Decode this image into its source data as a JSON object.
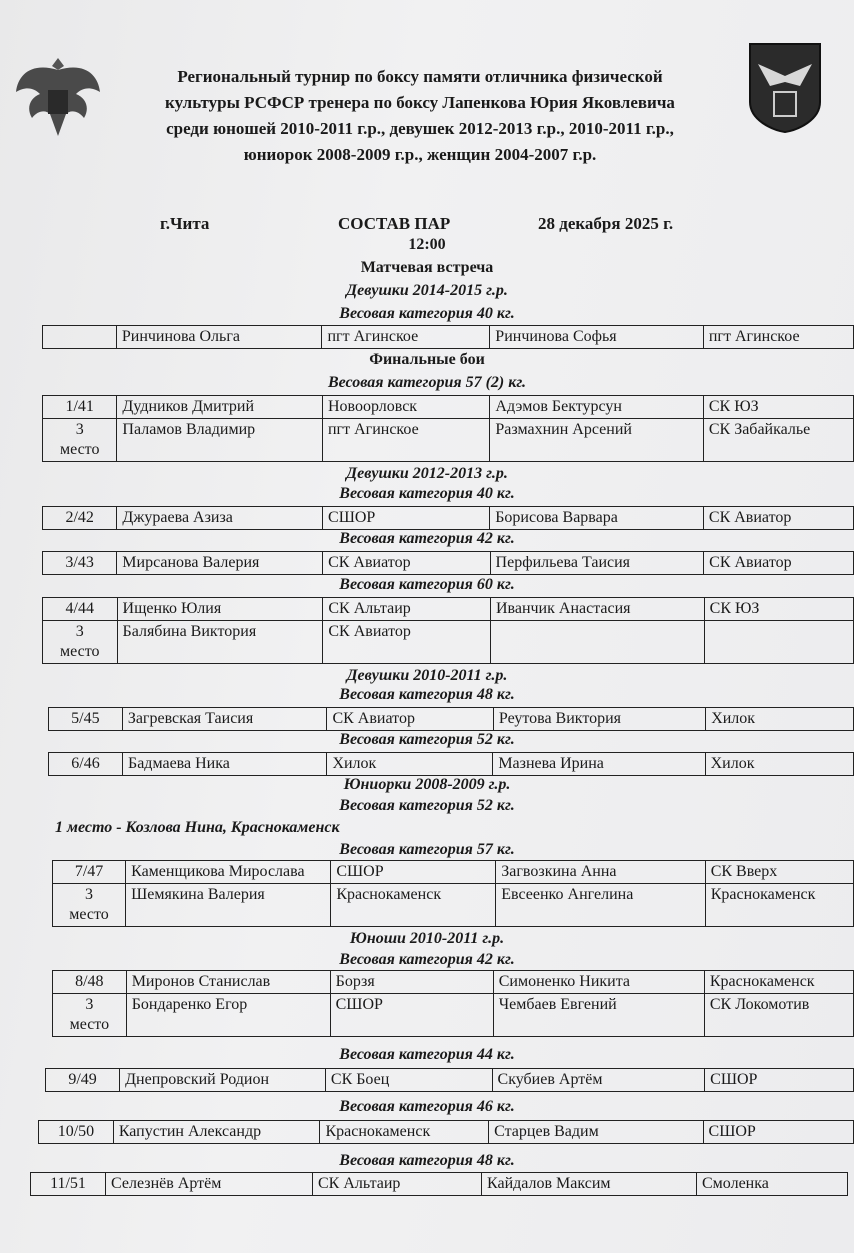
{
  "header": {
    "title_lines": [
      "Региональный турнир по боксу памяти отличника физической",
      "культуры РСФСР тренера по боксу Лапенкова Юрия Яковлевича",
      "среди юношей 2010-2011 г.р., девушек 2012-2013 г.р., 2010-2011 г.р.,",
      "юниорок 2008-2009 г.р., женщин 2004-2007 г.р."
    ],
    "city": "г.Чита",
    "doc_title": "СОСТАВ ПАР",
    "date": "28 декабря 2025 г.",
    "left_emblem": "russian-eagle-emblem",
    "right_emblem": "zabaikalsky-coat-of-arms"
  },
  "blocks": [
    {
      "type": "heading",
      "style": "bold",
      "text": "12:00"
    },
    {
      "type": "heading",
      "style": "bold",
      "text": "Матчевая встреча"
    },
    {
      "type": "heading",
      "style": "italic",
      "text": "Девушки 2014-2015 г.р."
    },
    {
      "type": "heading",
      "style": "italic",
      "text": "Весовая категория 40    кг."
    },
    {
      "type": "table",
      "rows": [
        [
          "",
          "Ринчинова Ольга",
          "пгт Агинское",
          "Ринчинова Софья",
          "пгт Агинское"
        ]
      ]
    },
    {
      "type": "heading",
      "style": "bold",
      "text": "Финальные  бои"
    },
    {
      "type": "heading",
      "style": "italic",
      "text": "Весовая категория 57 (2)  кг."
    },
    {
      "type": "table",
      "rows": [
        [
          "1/41",
          "Дудников Дмитрий",
          "Новоорловск",
          "Адэмов Бектурсун",
          "СК ЮЗ"
        ],
        [
          "3\nместо",
          "Паламов Владимир",
          "пгт Агинское",
          "Размахнин Арсений",
          "СК Забайкалье"
        ]
      ]
    },
    {
      "type": "heading",
      "style": "italic",
      "text": "Девушки 2012-2013 г.р."
    },
    {
      "type": "heading",
      "style": "italic",
      "text": "Весовая категория 40    кг."
    },
    {
      "type": "table",
      "rows": [
        [
          "2/42",
          "Джураева Азиза",
          "СШОР",
          "Борисова Варвара",
          "СК Авиатор"
        ]
      ]
    },
    {
      "type": "heading",
      "style": "italic",
      "text": "Весовая категория 42    кг."
    },
    {
      "type": "table",
      "rows": [
        [
          "3/43",
          "Мирсанова Валерия",
          "СК Авиатор",
          "Перфильева Таисия",
          "СК Авиатор"
        ]
      ]
    },
    {
      "type": "heading",
      "style": "italic",
      "text": "Весовая категория 60    кг."
    },
    {
      "type": "table",
      "rows": [
        [
          "4/44",
          "Ищенко Юлия",
          "СК Альтаир",
          "Иванчик Анастасия",
          "СК ЮЗ"
        ],
        [
          "3\nместо",
          "Балябина Виктория",
          "СК Авиатор",
          "",
          ""
        ]
      ]
    },
    {
      "type": "heading",
      "style": "italic",
      "text": "Девушки 2010-2011 г.р."
    },
    {
      "type": "heading",
      "style": "italic",
      "text": "Весовая категория 48    кг."
    },
    {
      "type": "table",
      "rows": [
        [
          "5/45",
          "Загревская Таисия",
          "СК Авиатор",
          "Реутова Виктория",
          "Хилок"
        ]
      ]
    },
    {
      "type": "heading",
      "style": "italic",
      "text": "Весовая категория 52    кг."
    },
    {
      "type": "table",
      "rows": [
        [
          "6/46",
          "Бадмаева Ника",
          "Хилок",
          "Мазнева Ирина",
          "Хилок"
        ]
      ]
    },
    {
      "type": "heading",
      "style": "italic",
      "text": "Юниорки 2008-2009 г.р."
    },
    {
      "type": "heading",
      "style": "italic",
      "text": "Весовая категория 52  кг."
    },
    {
      "type": "heading",
      "style": "italic-left",
      "text": "1 место - Козлова Нина, Краснокаменск"
    },
    {
      "type": "heading",
      "style": "italic",
      "text": "Весовая категория 57  кг."
    },
    {
      "type": "table",
      "rows": [
        [
          "7/47",
          "Каменщикова Мирослава",
          "СШОР",
          "Загвозкина Анна",
          "СК Вверх"
        ],
        [
          "3\nместо",
          "Шемякина Валерия",
          "Краснокаменск",
          "Евсеенко Ангелина",
          "Краснокаменск"
        ]
      ]
    },
    {
      "type": "heading",
      "style": "italic",
      "text": "Юноши 2010-2011 г.р."
    },
    {
      "type": "heading",
      "style": "italic",
      "text": "Весовая категория 42  кг."
    },
    {
      "type": "table",
      "rows": [
        [
          "8/48",
          "Миронов Станислав",
          "Борзя",
          "Симоненко Никита",
          "Краснокаменск"
        ],
        [
          "3\nместо",
          "Бондаренко Егор",
          "СШОР",
          "Чембаев Евгений",
          "СК Локомотив"
        ]
      ]
    },
    {
      "type": "heading",
      "style": "italic",
      "text": "Весовая категория 44 кг."
    },
    {
      "type": "table",
      "rows": [
        [
          "9/49",
          "Днепровский Родион",
          "СК Боец",
          "Скубиев Артём",
          "СШОР"
        ]
      ]
    },
    {
      "type": "heading",
      "style": "italic",
      "text": "Весовая категория 46   кг."
    },
    {
      "type": "table",
      "rows": [
        [
          "10/50",
          "Капустин Александр",
          "Краснокаменск",
          "Старцев Вадим",
          "СШОР"
        ]
      ]
    },
    {
      "type": "heading",
      "style": "italic",
      "text": "Весовая категория 48   кг."
    },
    {
      "type": "table",
      "rows": [
        [
          "11/51",
          "Селезнёв Артём",
          "СК Альтаир",
          "Кайдалов Максим",
          "Смоленка"
        ]
      ]
    }
  ]
}
